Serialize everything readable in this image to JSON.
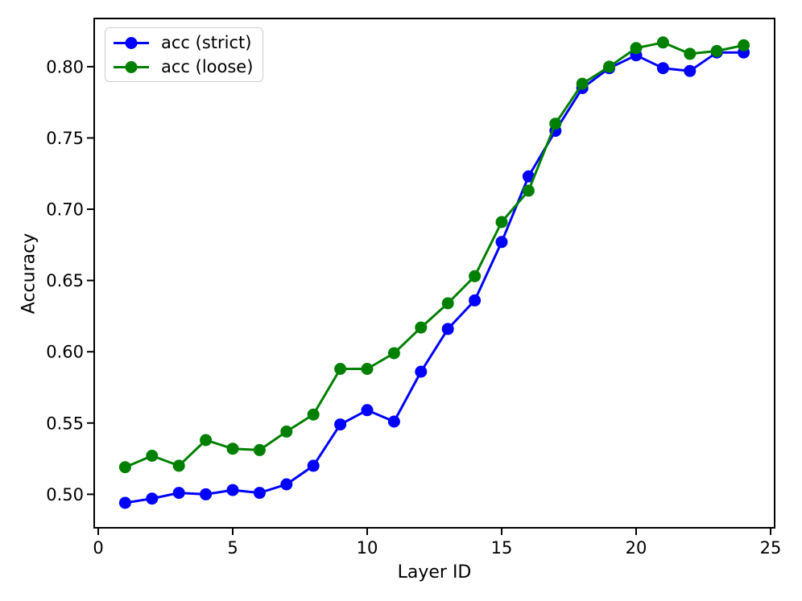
{
  "figure": {
    "background": "#ffffff",
    "text_color": "#000000"
  },
  "chart_data": {
    "type": "line",
    "title": "",
    "xlabel": "Layer ID",
    "ylabel": "Accuracy",
    "grid": false,
    "legend_position": "upper left",
    "marker": "circle",
    "axis_color": "#000000",
    "xlim": [
      -0.15,
      25.15
    ],
    "ylim": [
      0.4765,
      0.8338
    ],
    "xticks": [
      0,
      5,
      10,
      15,
      20,
      25
    ],
    "xtick_labels": [
      "0",
      "5",
      "10",
      "15",
      "20",
      "25"
    ],
    "yticks": [
      0.5,
      0.55,
      0.6,
      0.65,
      0.7,
      0.75,
      0.8
    ],
    "ytick_labels": [
      "0.50",
      "0.55",
      "0.60",
      "0.65",
      "0.70",
      "0.75",
      "0.80"
    ],
    "x": [
      1,
      2,
      3,
      4,
      5,
      6,
      7,
      8,
      9,
      10,
      11,
      12,
      13,
      14,
      15,
      16,
      17,
      18,
      19,
      20,
      21,
      22,
      23,
      24
    ],
    "series": [
      {
        "name": "acc (strict)",
        "color": "#0000ff",
        "values": [
          0.494,
          0.497,
          0.501,
          0.5,
          0.503,
          0.501,
          0.507,
          0.52,
          0.549,
          0.559,
          0.551,
          0.586,
          0.616,
          0.636,
          0.677,
          0.723,
          0.755,
          0.785,
          0.799,
          0.808,
          0.799,
          0.797,
          0.81,
          0.81
        ]
      },
      {
        "name": "acc (loose)",
        "color": "#008000",
        "values": [
          0.519,
          0.527,
          0.52,
          0.538,
          0.532,
          0.531,
          0.544,
          0.556,
          0.588,
          0.588,
          0.599,
          0.617,
          0.634,
          0.653,
          0.691,
          0.713,
          0.76,
          0.788,
          0.8,
          0.813,
          0.817,
          0.809,
          0.811,
          0.815
        ]
      }
    ]
  }
}
